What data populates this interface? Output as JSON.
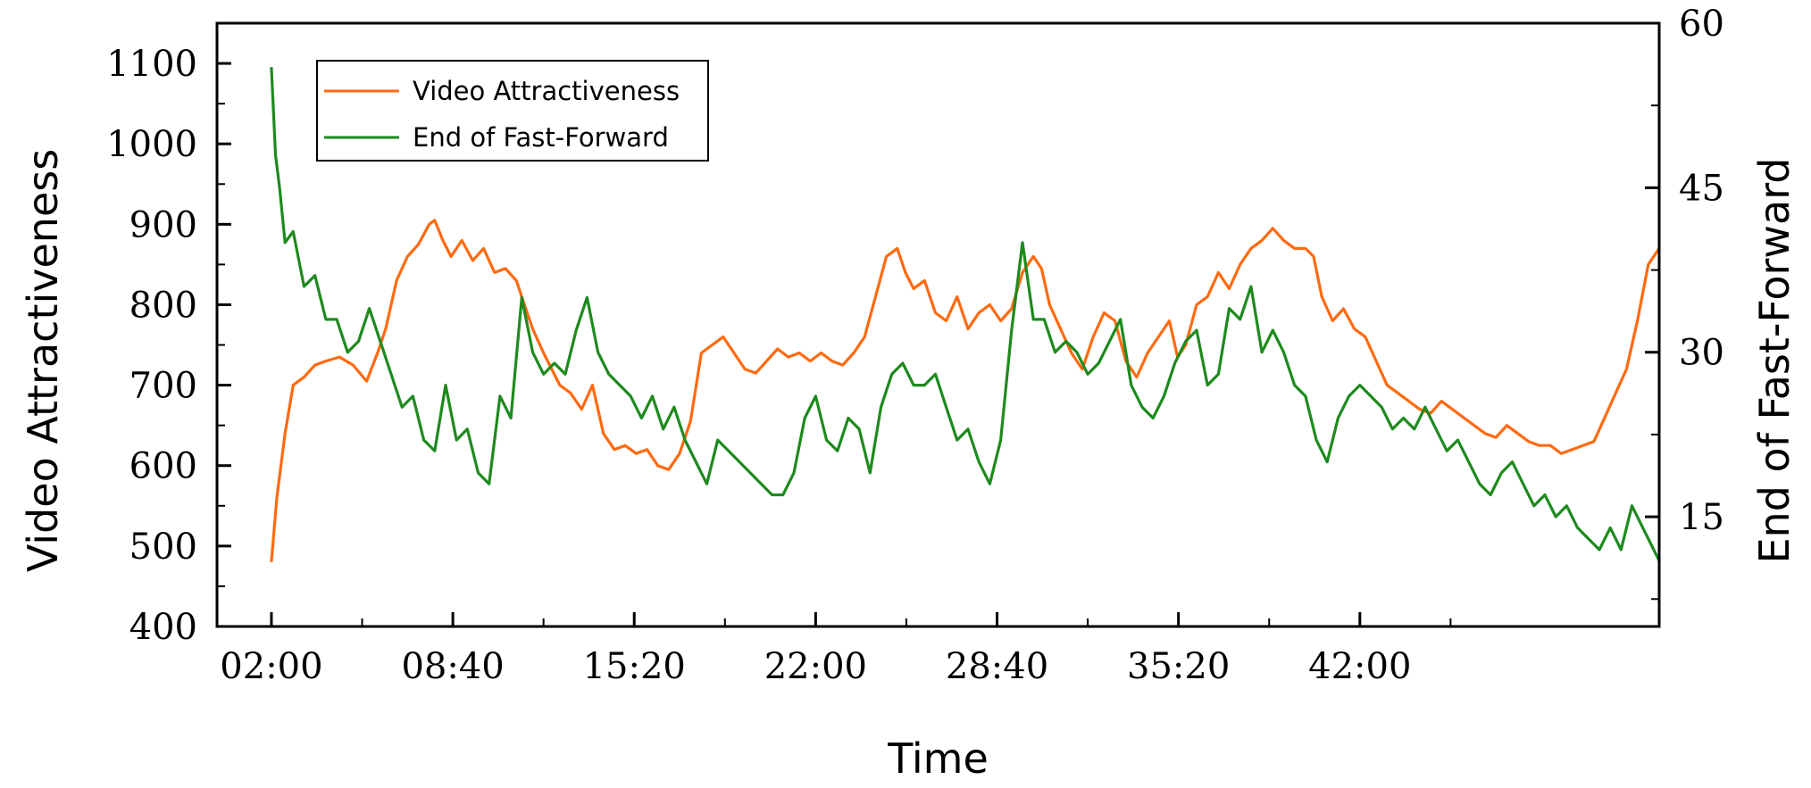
{
  "chart_data": {
    "type": "line",
    "xlabel": "Time",
    "ylabel": "Video Attractiveness",
    "y2label": "End of Fast-Forward",
    "x_unit": "minutes",
    "xlim": [
      0,
      53
    ],
    "ylim": [
      400,
      1150
    ],
    "y2lim": [
      5,
      60
    ],
    "x_ticks": [
      {
        "value": 2,
        "label": "02:00"
      },
      {
        "value": 8.667,
        "label": "08:40"
      },
      {
        "value": 15.333,
        "label": "15:20"
      },
      {
        "value": 22,
        "label": "22:00"
      },
      {
        "value": 28.667,
        "label": "28:40"
      },
      {
        "value": 35.333,
        "label": "35:20"
      },
      {
        "value": 42,
        "label": "42:00"
      }
    ],
    "y_ticks": [
      400,
      500,
      600,
      700,
      800,
      900,
      1000,
      1100
    ],
    "y2_ticks": [
      15,
      30,
      45,
      60
    ],
    "legend_position": "top-left",
    "grid": false,
    "series": [
      {
        "name": "Video Attractiveness",
        "axis": "left",
        "color": "#FF6A10",
        "points": [
          [
            2,
            480
          ],
          [
            2.2,
            560
          ],
          [
            2.5,
            640
          ],
          [
            2.8,
            700
          ],
          [
            3.2,
            710
          ],
          [
            3.6,
            725
          ],
          [
            4.0,
            730
          ],
          [
            4.5,
            735
          ],
          [
            5.0,
            725
          ],
          [
            5.5,
            705
          ],
          [
            5.9,
            740
          ],
          [
            6.2,
            770
          ],
          [
            6.6,
            830
          ],
          [
            7.0,
            860
          ],
          [
            7.4,
            875
          ],
          [
            7.8,
            900
          ],
          [
            8.0,
            905
          ],
          [
            8.3,
            880
          ],
          [
            8.6,
            860
          ],
          [
            9.0,
            880
          ],
          [
            9.4,
            855
          ],
          [
            9.8,
            870
          ],
          [
            10.2,
            840
          ],
          [
            10.6,
            845
          ],
          [
            11.0,
            830
          ],
          [
            11.3,
            800
          ],
          [
            11.6,
            770
          ],
          [
            12.0,
            740
          ],
          [
            12.3,
            720
          ],
          [
            12.6,
            700
          ],
          [
            13.0,
            690
          ],
          [
            13.4,
            670
          ],
          [
            13.8,
            700
          ],
          [
            14.2,
            640
          ],
          [
            14.6,
            620
          ],
          [
            15.0,
            625
          ],
          [
            15.4,
            615
          ],
          [
            15.8,
            620
          ],
          [
            16.2,
            600
          ],
          [
            16.6,
            595
          ],
          [
            17.0,
            615
          ],
          [
            17.4,
            655
          ],
          [
            17.8,
            740
          ],
          [
            18.2,
            750
          ],
          [
            18.6,
            760
          ],
          [
            19.0,
            740
          ],
          [
            19.4,
            720
          ],
          [
            19.8,
            715
          ],
          [
            20.2,
            730
          ],
          [
            20.6,
            745
          ],
          [
            21.0,
            735
          ],
          [
            21.4,
            740
          ],
          [
            21.8,
            730
          ],
          [
            22.2,
            740
          ],
          [
            22.6,
            730
          ],
          [
            23.0,
            725
          ],
          [
            23.4,
            740
          ],
          [
            23.8,
            760
          ],
          [
            24.2,
            810
          ],
          [
            24.6,
            860
          ],
          [
            25.0,
            870
          ],
          [
            25.3,
            840
          ],
          [
            25.6,
            820
          ],
          [
            26.0,
            830
          ],
          [
            26.4,
            790
          ],
          [
            26.8,
            780
          ],
          [
            27.2,
            810
          ],
          [
            27.6,
            770
          ],
          [
            28.0,
            790
          ],
          [
            28.4,
            800
          ],
          [
            28.8,
            780
          ],
          [
            29.2,
            795
          ],
          [
            29.6,
            840
          ],
          [
            30.0,
            860
          ],
          [
            30.3,
            845
          ],
          [
            30.6,
            800
          ],
          [
            31.0,
            770
          ],
          [
            31.4,
            740
          ],
          [
            31.8,
            720
          ],
          [
            32.2,
            760
          ],
          [
            32.6,
            790
          ],
          [
            33.0,
            780
          ],
          [
            33.4,
            730
          ],
          [
            33.8,
            710
          ],
          [
            34.2,
            740
          ],
          [
            34.6,
            760
          ],
          [
            35.0,
            780
          ],
          [
            35.3,
            735
          ],
          [
            35.6,
            750
          ],
          [
            36.0,
            800
          ],
          [
            36.4,
            810
          ],
          [
            36.8,
            840
          ],
          [
            37.2,
            820
          ],
          [
            37.6,
            850
          ],
          [
            38.0,
            870
          ],
          [
            38.4,
            880
          ],
          [
            38.8,
            895
          ],
          [
            39.2,
            880
          ],
          [
            39.6,
            870
          ],
          [
            40.0,
            870
          ],
          [
            40.3,
            860
          ],
          [
            40.6,
            810
          ],
          [
            41.0,
            780
          ],
          [
            41.4,
            795
          ],
          [
            41.8,
            770
          ],
          [
            42.2,
            760
          ],
          [
            42.6,
            730
          ],
          [
            43.0,
            700
          ],
          [
            43.4,
            690
          ],
          [
            43.8,
            680
          ],
          [
            44.2,
            670
          ],
          [
            44.6,
            665
          ],
          [
            45.0,
            680
          ],
          [
            45.4,
            670
          ],
          [
            45.8,
            660
          ],
          [
            46.2,
            650
          ],
          [
            46.6,
            640
          ],
          [
            47.0,
            635
          ],
          [
            47.4,
            650
          ],
          [
            47.8,
            640
          ],
          [
            48.2,
            630
          ],
          [
            48.6,
            625
          ],
          [
            49.0,
            625
          ],
          [
            49.4,
            615
          ],
          [
            49.8,
            620
          ],
          [
            50.2,
            625
          ],
          [
            50.6,
            630
          ],
          [
            51.0,
            660
          ],
          [
            51.4,
            690
          ],
          [
            51.8,
            720
          ],
          [
            52.2,
            780
          ],
          [
            52.6,
            850
          ],
          [
            53.0,
            870
          ]
        ]
      },
      {
        "name": "End of Fast-Forward",
        "axis": "right",
        "color": "#1E8A1E",
        "points": [
          [
            2,
            56
          ],
          [
            2.15,
            48
          ],
          [
            2.3,
            45
          ],
          [
            2.5,
            40
          ],
          [
            2.8,
            41
          ],
          [
            3.2,
            36
          ],
          [
            3.6,
            37
          ],
          [
            4.0,
            33
          ],
          [
            4.4,
            33
          ],
          [
            4.8,
            30
          ],
          [
            5.2,
            31
          ],
          [
            5.6,
            34
          ],
          [
            6.0,
            31
          ],
          [
            6.4,
            28
          ],
          [
            6.8,
            25
          ],
          [
            7.2,
            26
          ],
          [
            7.6,
            22
          ],
          [
            8.0,
            21
          ],
          [
            8.4,
            27
          ],
          [
            8.8,
            22
          ],
          [
            9.2,
            23
          ],
          [
            9.6,
            19
          ],
          [
            10.0,
            18
          ],
          [
            10.4,
            26
          ],
          [
            10.8,
            24
          ],
          [
            11.2,
            35
          ],
          [
            11.6,
            30
          ],
          [
            12.0,
            28
          ],
          [
            12.4,
            29
          ],
          [
            12.8,
            28
          ],
          [
            13.2,
            32
          ],
          [
            13.6,
            35
          ],
          [
            14.0,
            30
          ],
          [
            14.4,
            28
          ],
          [
            14.8,
            27
          ],
          [
            15.2,
            26
          ],
          [
            15.6,
            24
          ],
          [
            16.0,
            26
          ],
          [
            16.4,
            23
          ],
          [
            16.8,
            25
          ],
          [
            17.2,
            22
          ],
          [
            17.6,
            20
          ],
          [
            18.0,
            18
          ],
          [
            18.4,
            22
          ],
          [
            18.8,
            21
          ],
          [
            19.2,
            20
          ],
          [
            19.6,
            19
          ],
          [
            20.0,
            18
          ],
          [
            20.4,
            17
          ],
          [
            20.8,
            17
          ],
          [
            21.2,
            19
          ],
          [
            21.6,
            24
          ],
          [
            22.0,
            26
          ],
          [
            22.4,
            22
          ],
          [
            22.8,
            21
          ],
          [
            23.2,
            24
          ],
          [
            23.6,
            23
          ],
          [
            24.0,
            19
          ],
          [
            24.4,
            25
          ],
          [
            24.8,
            28
          ],
          [
            25.2,
            29
          ],
          [
            25.6,
            27
          ],
          [
            26.0,
            27
          ],
          [
            26.4,
            28
          ],
          [
            26.8,
            25
          ],
          [
            27.2,
            22
          ],
          [
            27.6,
            23
          ],
          [
            28.0,
            20
          ],
          [
            28.4,
            18
          ],
          [
            28.8,
            22
          ],
          [
            29.2,
            32
          ],
          [
            29.6,
            40
          ],
          [
            30.0,
            33
          ],
          [
            30.4,
            33
          ],
          [
            30.8,
            30
          ],
          [
            31.2,
            31
          ],
          [
            31.6,
            30
          ],
          [
            32.0,
            28
          ],
          [
            32.4,
            29
          ],
          [
            32.8,
            31
          ],
          [
            33.2,
            33
          ],
          [
            33.6,
            27
          ],
          [
            34.0,
            25
          ],
          [
            34.4,
            24
          ],
          [
            34.8,
            26
          ],
          [
            35.2,
            29
          ],
          [
            35.6,
            31
          ],
          [
            36.0,
            32
          ],
          [
            36.4,
            27
          ],
          [
            36.8,
            28
          ],
          [
            37.2,
            34
          ],
          [
            37.6,
            33
          ],
          [
            38.0,
            36
          ],
          [
            38.4,
            30
          ],
          [
            38.8,
            32
          ],
          [
            39.2,
            30
          ],
          [
            39.6,
            27
          ],
          [
            40.0,
            26
          ],
          [
            40.4,
            22
          ],
          [
            40.8,
            20
          ],
          [
            41.2,
            24
          ],
          [
            41.6,
            26
          ],
          [
            42.0,
            27
          ],
          [
            42.4,
            26
          ],
          [
            42.8,
            25
          ],
          [
            43.2,
            23
          ],
          [
            43.6,
            24
          ],
          [
            44.0,
            23
          ],
          [
            44.4,
            25
          ],
          [
            44.8,
            23
          ],
          [
            45.2,
            21
          ],
          [
            45.6,
            22
          ],
          [
            46.0,
            20
          ],
          [
            46.4,
            18
          ],
          [
            46.8,
            17
          ],
          [
            47.2,
            19
          ],
          [
            47.6,
            20
          ],
          [
            48.0,
            18
          ],
          [
            48.4,
            16
          ],
          [
            48.8,
            17
          ],
          [
            49.2,
            15
          ],
          [
            49.6,
            16
          ],
          [
            50.0,
            14
          ],
          [
            50.4,
            13
          ],
          [
            50.8,
            12
          ],
          [
            51.2,
            14
          ],
          [
            51.6,
            12
          ],
          [
            52.0,
            16
          ],
          [
            52.4,
            14
          ],
          [
            52.8,
            12
          ],
          [
            53.0,
            11
          ]
        ]
      }
    ]
  }
}
